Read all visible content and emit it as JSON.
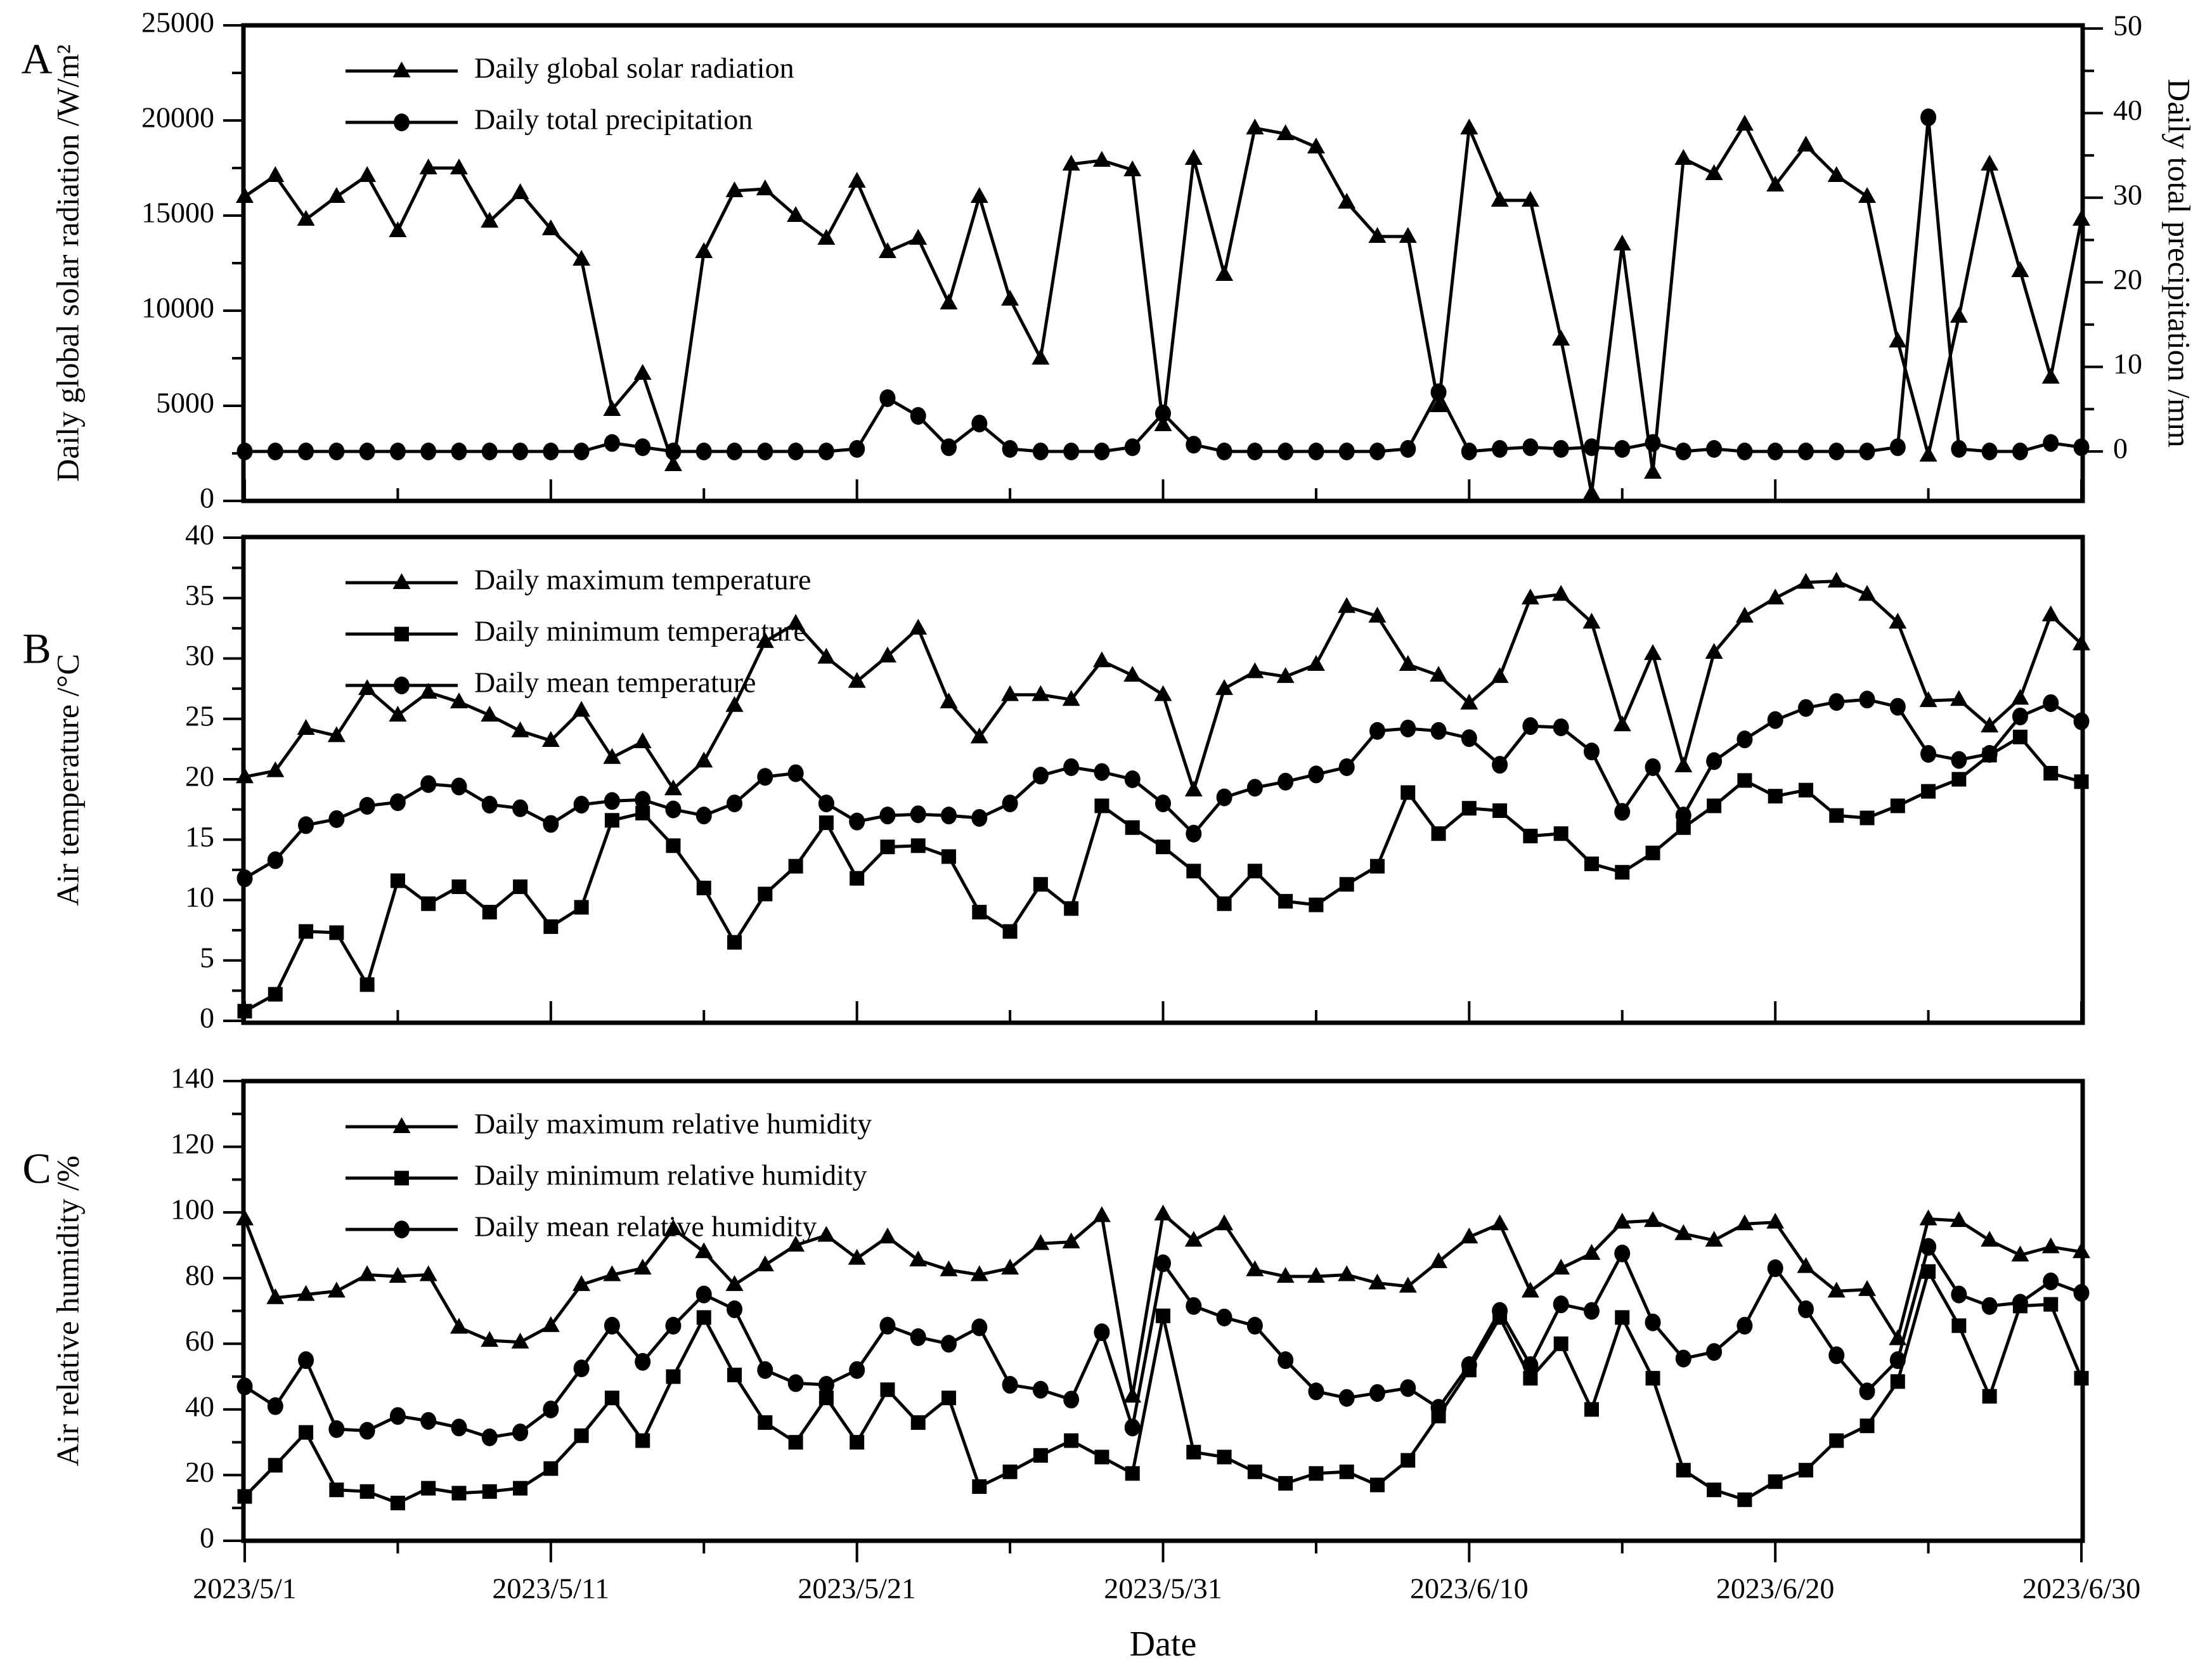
{
  "figure_type": "three-panel meteorological time series",
  "x_axis": {
    "title": "Date",
    "major_tick_labels": [
      "2023/5/1",
      "2023/5/11",
      "2023/5/21",
      "2023/5/31",
      "2023/6/10",
      "2023/6/20",
      "2023/6/30"
    ],
    "major_tick_day_indices": [
      0,
      10,
      20,
      30,
      40,
      50,
      60
    ],
    "minor_tick_step_days": 5
  },
  "chart_data": [
    {
      "type": "line",
      "panel_label": "A",
      "title": "",
      "ylabel_left": "Daily global solar radiation /W/m²",
      "ylabel_right": "Daily total precipitation /mm",
      "ylim_left": [
        0,
        25000
      ],
      "yticks_left": [
        0,
        5000,
        10000,
        15000,
        20000,
        25000
      ],
      "yminor_left": 2500,
      "ylim_right": [
        0,
        50
      ],
      "yticks_right": [
        0,
        10,
        20,
        30,
        40,
        50
      ],
      "yminor_right": 5,
      "grid": false,
      "legend_position": "top-left-inside",
      "series": [
        {
          "name": "Daily global solar radiation",
          "marker": "triangle",
          "axis": "left",
          "values": [
            16000,
            17100,
            14800,
            16000,
            17100,
            14200,
            17500,
            17500,
            14700,
            16200,
            14300,
            12700,
            4800,
            6700,
            1900,
            13100,
            16300,
            16400,
            15000,
            13800,
            16800,
            13100,
            13800,
            10400,
            16000,
            10600,
            7500,
            17700,
            17900,
            17400,
            4000,
            18000,
            11900,
            19600,
            19300,
            18600,
            15700,
            13900,
            13900,
            5000,
            19600,
            15800,
            15800,
            8500,
            400,
            13500,
            1500,
            18000,
            17200,
            19800,
            16600,
            18700,
            17100,
            16000,
            8400,
            2400,
            9700,
            17700,
            12100,
            6500,
            14800
          ]
        },
        {
          "name": "Daily total precipitation",
          "marker": "circle",
          "axis": "right",
          "values": [
            0,
            0,
            0,
            0,
            0,
            0,
            0,
            0,
            0,
            0,
            0,
            0,
            1,
            0.5,
            0,
            0,
            0,
            0,
            0,
            0,
            0.3,
            6.3,
            4.2,
            0.5,
            3.3,
            0.3,
            0,
            0,
            0,
            0.5,
            4.5,
            0.8,
            0,
            0,
            0,
            0,
            0,
            0,
            0.3,
            7,
            0,
            0.3,
            0.5,
            0.3,
            0.5,
            0.3,
            1,
            0,
            0.3,
            0,
            0,
            0,
            0,
            0,
            0.5,
            39.5,
            0.3,
            0,
            0,
            1,
            0.5
          ]
        }
      ]
    },
    {
      "type": "line",
      "panel_label": "B",
      "title": "",
      "ylabel_left": "Air temperature /°C",
      "ylim_left": [
        0,
        40
      ],
      "yticks_left": [
        0,
        5,
        10,
        15,
        20,
        25,
        30,
        35,
        40
      ],
      "yminor_left": 2.5,
      "grid": false,
      "legend_position": "top-left-inside",
      "series": [
        {
          "name": "Daily maximum temperature",
          "marker": "triangle",
          "axis": "left",
          "values": [
            20.2,
            20.7,
            24.2,
            23.6,
            27.5,
            25.3,
            27.2,
            26.4,
            25.3,
            24,
            23.2,
            25.7,
            21.8,
            23.1,
            19.2,
            21.5,
            26.1,
            31.4,
            32.9,
            30.1,
            28.1,
            30.2,
            32.5,
            26.4,
            23.5,
            27,
            27,
            26.6,
            29.8,
            28.6,
            27,
            19.1,
            27.5,
            28.9,
            28.5,
            29.5,
            34.3,
            33.5,
            29.5,
            28.6,
            26.3,
            28.5,
            35,
            35.3,
            33,
            24.5,
            30.4,
            21.1,
            30.5,
            33.5,
            35,
            36.3,
            36.4,
            35.3,
            33,
            26.5,
            26.6,
            24.4,
            26.7,
            33.6,
            31.2
          ]
        },
        {
          "name": "Daily minimum temperature",
          "marker": "square",
          "axis": "left",
          "values": [
            0.8,
            2.2,
            7.4,
            7.3,
            3,
            11.6,
            9.7,
            11.1,
            9,
            11.1,
            7.8,
            9.4,
            16.6,
            17.2,
            14.5,
            11,
            6.5,
            10.5,
            12.8,
            16.4,
            11.8,
            14.4,
            14.5,
            13.6,
            9,
            7.4,
            11.3,
            9.3,
            17.8,
            16,
            14.4,
            12.4,
            9.7,
            12.4,
            9.9,
            9.6,
            11.3,
            12.8,
            18.9,
            15.5,
            17.6,
            17.4,
            15.3,
            15.5,
            13,
            12.3,
            13.9,
            16,
            17.8,
            19.9,
            18.6,
            19.1,
            17,
            16.8,
            17.8,
            19,
            20,
            22,
            23.5,
            20.5,
            19.8
          ]
        },
        {
          "name": "Daily mean temperature",
          "marker": "circle",
          "axis": "left",
          "values": [
            11.8,
            13.3,
            16.2,
            16.7,
            17.8,
            18.1,
            19.6,
            19.4,
            17.9,
            17.6,
            16.3,
            17.9,
            18.2,
            18.3,
            17.5,
            17,
            18,
            20.2,
            20.5,
            18,
            16.5,
            17,
            17.1,
            17,
            16.8,
            18,
            20.3,
            21,
            20.6,
            20,
            18,
            15.5,
            18.5,
            19.3,
            19.8,
            20.4,
            21,
            24,
            24.2,
            24,
            23.4,
            21.2,
            24.4,
            24.3,
            22.3,
            17.3,
            21,
            17,
            21.5,
            23.3,
            24.9,
            25.9,
            26.4,
            26.6,
            26,
            22.1,
            21.6,
            22.1,
            25.2,
            26.3,
            24.8
          ]
        }
      ]
    },
    {
      "type": "line",
      "panel_label": "C",
      "title": "",
      "ylabel_left": "Air relative humidity /%",
      "ylim_left": [
        0,
        140
      ],
      "yticks_left": [
        0,
        20,
        40,
        60,
        80,
        100,
        120,
        140
      ],
      "yminor_left": 10,
      "grid": false,
      "legend_position": "top-left-inside",
      "series": [
        {
          "name": "Daily maximum relative humidity",
          "marker": "triangle",
          "axis": "left",
          "values": [
            98,
            74,
            75,
            76,
            81,
            80.5,
            81,
            65,
            61,
            60.5,
            65.5,
            78,
            81,
            83,
            95,
            88,
            78,
            84,
            90,
            93,
            86,
            92.5,
            85.5,
            82.5,
            81,
            83,
            90.5,
            91,
            99,
            44,
            99.5,
            91.5,
            96.5,
            82.5,
            80.5,
            80.5,
            81,
            78.5,
            77.5,
            85,
            92.5,
            96.5,
            76,
            83,
            87.5,
            97,
            97.5,
            93.5,
            91.5,
            96.5,
            97,
            83.5,
            76,
            76.5,
            61.5,
            98,
            97.5,
            91.5,
            87,
            89.5,
            88
          ]
        },
        {
          "name": "Daily minimum relative humidity",
          "marker": "square",
          "axis": "left",
          "values": [
            13.5,
            23,
            33,
            15.5,
            15,
            11.5,
            16,
            14.5,
            15,
            16,
            22,
            32,
            43.5,
            30.5,
            50,
            68,
            50.5,
            36,
            30,
            43.5,
            30,
            46,
            36,
            43.5,
            16.5,
            21,
            26,
            30.5,
            25.5,
            20.5,
            68.5,
            27,
            25.5,
            21,
            17.5,
            20.5,
            21,
            17,
            24.5,
            38,
            52,
            68,
            49.5,
            60,
            40,
            68,
            49.5,
            21.5,
            15.5,
            12.5,
            18,
            21.5,
            30.5,
            35,
            48.5,
            82,
            65.5,
            44,
            71.5,
            72,
            49.5
          ]
        },
        {
          "name": "Daily mean relative humidity",
          "marker": "circle",
          "axis": "left",
          "values": [
            47,
            41,
            55,
            34,
            33.5,
            38,
            36.5,
            34.5,
            31.5,
            33,
            40,
            52.5,
            65.5,
            54.5,
            65.5,
            75,
            70.5,
            52,
            48,
            47.5,
            52,
            65.5,
            62,
            60,
            65,
            47.5,
            46,
            43,
            63.5,
            34.5,
            84.5,
            71.5,
            68,
            65.5,
            55,
            45.5,
            43.5,
            45,
            46.5,
            40.5,
            53.5,
            70,
            53.5,
            72,
            70,
            87.5,
            66.5,
            55.5,
            57.5,
            65.5,
            83,
            70.5,
            56.5,
            45.5,
            55,
            89.5,
            75,
            71.5,
            72.5,
            79,
            75.5
          ]
        }
      ]
    }
  ],
  "dates": [
    "2023/5/1",
    "2023/5/2",
    "2023/5/3",
    "2023/5/4",
    "2023/5/5",
    "2023/5/6",
    "2023/5/7",
    "2023/5/8",
    "2023/5/9",
    "2023/5/10",
    "2023/5/11",
    "2023/5/12",
    "2023/5/13",
    "2023/5/14",
    "2023/5/15",
    "2023/5/16",
    "2023/5/17",
    "2023/5/18",
    "2023/5/19",
    "2023/5/20",
    "2023/5/21",
    "2023/5/22",
    "2023/5/23",
    "2023/5/24",
    "2023/5/25",
    "2023/5/26",
    "2023/5/27",
    "2023/5/28",
    "2023/5/29",
    "2023/5/30",
    "2023/5/31",
    "2023/6/1",
    "2023/6/2",
    "2023/6/3",
    "2023/6/4",
    "2023/6/5",
    "2023/6/6",
    "2023/6/7",
    "2023/6/8",
    "2023/6/9",
    "2023/6/10",
    "2023/6/11",
    "2023/6/12",
    "2023/6/13",
    "2023/6/14",
    "2023/6/15",
    "2023/6/16",
    "2023/6/17",
    "2023/6/18",
    "2023/6/19",
    "2023/6/20",
    "2023/6/21",
    "2023/6/22",
    "2023/6/23",
    "2023/6/24",
    "2023/6/25",
    "2023/6/26",
    "2023/6/27",
    "2023/6/28",
    "2023/6/29",
    "2023/6/30"
  ],
  "colors": {
    "ink": "#000000",
    "background": "#ffffff"
  }
}
